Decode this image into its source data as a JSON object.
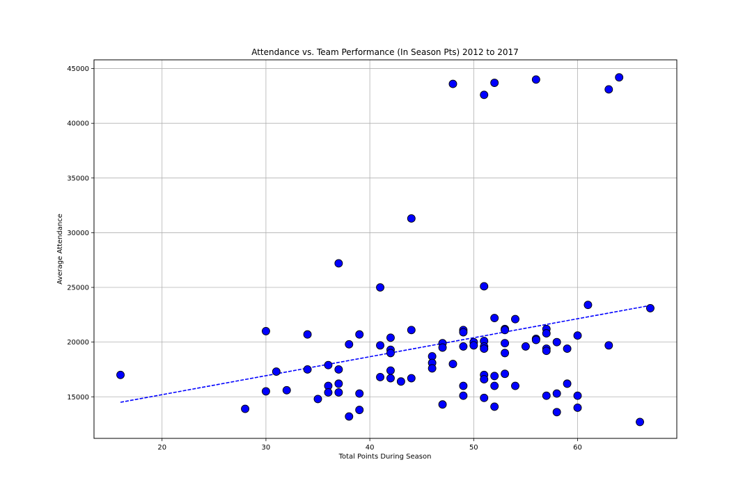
{
  "chart_data": {
    "type": "scatter",
    "title": "Attendance vs. Team Performance (In Season Pts) 2012 to 2017",
    "xlabel": "Total Points During Season",
    "ylabel": "Average Attendance",
    "xlim": [
      13.45,
      69.55
    ],
    "ylim": [
      11200,
      45800
    ],
    "x_ticks": [
      20,
      30,
      40,
      50,
      60
    ],
    "x_tick_labels": [
      "20",
      "30",
      "40",
      "50",
      "60"
    ],
    "y_ticks": [
      15000,
      20000,
      25000,
      30000,
      35000,
      40000,
      45000
    ],
    "y_tick_labels": [
      "15000",
      "20000",
      "25000",
      "30000",
      "35000",
      "40000",
      "45000"
    ],
    "grid": true,
    "colors": {
      "marker_fill": "#0000ff",
      "marker_edge": "#000000",
      "trend_line": "#0000ff",
      "grid": "#b0b0b0"
    },
    "series": [
      {
        "x": [
          16,
          28,
          30,
          30,
          31,
          32,
          34,
          34,
          35,
          36,
          36,
          36,
          37,
          37,
          37,
          37,
          38,
          38,
          39,
          39,
          39,
          41,
          41,
          41,
          42,
          42,
          42,
          42,
          42,
          43,
          44,
          44,
          44,
          46,
          46,
          46,
          47,
          47,
          47,
          48,
          48,
          49,
          49,
          49,
          49,
          49,
          50,
          50,
          51,
          51,
          51,
          51,
          51,
          51,
          51,
          51,
          52,
          52,
          52,
          52,
          52,
          53,
          53,
          53,
          53,
          53,
          54,
          54,
          55,
          56,
          56,
          56,
          57,
          57,
          57,
          57,
          57,
          58,
          58,
          58,
          59,
          59,
          60,
          60,
          60,
          61,
          63,
          63,
          64,
          66,
          67
        ],
        "y": [
          17000,
          13900,
          21000,
          15500,
          17300,
          15600,
          20700,
          17500,
          14800,
          17900,
          16000,
          15400,
          27200,
          17500,
          16200,
          15400,
          19800,
          13200,
          20700,
          15300,
          13800,
          25000,
          19700,
          16800,
          20400,
          19300,
          19000,
          17400,
          16700,
          16400,
          31300,
          21100,
          16700,
          18700,
          18100,
          17600,
          19900,
          19500,
          14300,
          43600,
          18000,
          21100,
          20900,
          19600,
          16000,
          15100,
          20000,
          19700,
          42600,
          25100,
          20100,
          19600,
          19400,
          17000,
          16600,
          14900,
          43700,
          22200,
          16900,
          16000,
          14100,
          21200,
          21100,
          19900,
          19000,
          17100,
          22100,
          16000,
          19600,
          44000,
          20300,
          20200,
          21200,
          20800,
          19400,
          19200,
          15100,
          20000,
          15300,
          13600,
          19400,
          16200,
          20600,
          15100,
          14000,
          23400,
          43100,
          19700,
          44200,
          12700,
          23100
        ]
      }
    ],
    "trend_line": {
      "style": "dashed",
      "x": [
        16,
        67
      ],
      "y": [
        14500,
        23350
      ]
    }
  }
}
